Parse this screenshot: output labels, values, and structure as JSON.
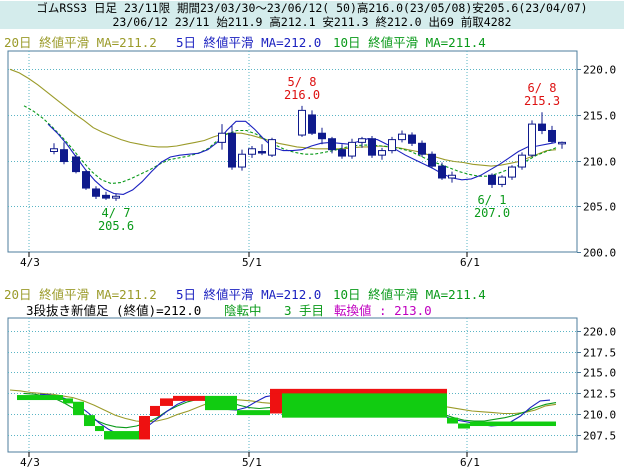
{
  "header": {
    "line1": "ゴムRSS3 日足 23/11限 期間23/03/30～23/06/12( 50)高216.0(23/05/08)安205.6(23/04/07)",
    "line2": "23/06/12 23/11 始211.9 高212.1 安211.3 終212.0 出69 前取4282"
  },
  "legend": {
    "ma20": "20日 終値平滑 MA=211.2",
    "ma5": "5日 終値平滑 MA=212.0",
    "ma10": "10日 終値平滑 MA=211.4",
    "kagi_label": "3段抜き新値足 (終値)=212.0",
    "kagi_state": "陰転中",
    "kagi_count": "3 手目",
    "kagi_reversal": "転換値 : 213.0"
  },
  "colors": {
    "ma20": "#9b9b2a",
    "ma5": "#1c22c0",
    "ma10": "#0a9a1a",
    "candle": "#0f1a8c",
    "up_block": "#ee1111",
    "down_block": "#11cc11",
    "grid": "#5ab4c4",
    "axis": "#4c7c9c"
  },
  "chart_data": [
    {
      "type": "candlestick",
      "title": "ゴムRSS3 日足",
      "x_ticks": [
        "4/3",
        "5/1",
        "6/1"
      ],
      "y_ticks": [
        "200.0",
        "205.0",
        "210.0",
        "215.0",
        "220.0"
      ],
      "ylim": [
        200,
        222
      ],
      "grid": true,
      "annotations": [
        {
          "date": "5/8",
          "value": 216.0,
          "text_date": "5/ 8",
          "text_value": "216.0",
          "color": "#dd1111",
          "position": "above"
        },
        {
          "date": "4/7",
          "value": 205.6,
          "text_date": "4/ 7",
          "text_value": "205.6",
          "color": "#0a9a1a",
          "position": "below"
        },
        {
          "date": "6/1",
          "value": 207.0,
          "text_date": "6/ 1",
          "text_value": "207.0",
          "color": "#0a9a1a",
          "position": "below"
        },
        {
          "date": "6/8",
          "value": 215.3,
          "text_date": "6/ 8",
          "text_value": "215.3",
          "color": "#dd1111",
          "position": "above"
        }
      ],
      "candles": [
        {
          "d": "3/30",
          "o": 211.0,
          "h": 211.9,
          "l": 210.7,
          "c": 211.3
        },
        {
          "d": "3/31",
          "o": 211.2,
          "h": 212.0,
          "l": 209.6,
          "c": 209.9
        },
        {
          "d": "4/3",
          "o": 210.4,
          "h": 210.6,
          "l": 208.6,
          "c": 208.8
        },
        {
          "d": "4/4",
          "o": 208.8,
          "h": 209.0,
          "l": 206.8,
          "c": 207.0
        },
        {
          "d": "4/5",
          "o": 206.9,
          "h": 207.2,
          "l": 205.8,
          "c": 206.1
        },
        {
          "d": "4/6",
          "o": 206.2,
          "h": 206.6,
          "l": 205.7,
          "c": 205.9
        },
        {
          "d": "4/7",
          "o": 205.9,
          "h": 206.4,
          "l": 205.6,
          "c": 206.1
        },
        {
          "d": "4/24",
          "o": 212.0,
          "h": 214.0,
          "l": 211.2,
          "c": 213.0
        },
        {
          "d": "4/25",
          "o": 213.0,
          "h": 213.8,
          "l": 209.0,
          "c": 209.3
        },
        {
          "d": "4/26",
          "o": 209.3,
          "h": 211.2,
          "l": 208.9,
          "c": 210.7
        },
        {
          "d": "4/27",
          "o": 210.7,
          "h": 211.6,
          "l": 210.3,
          "c": 211.3
        },
        {
          "d": "5/1",
          "o": 211.0,
          "h": 211.8,
          "l": 210.6,
          "c": 210.9
        },
        {
          "d": "5/2",
          "o": 210.6,
          "h": 212.5,
          "l": 210.4,
          "c": 212.3
        },
        {
          "d": "5/8",
          "o": 212.8,
          "h": 216.0,
          "l": 212.6,
          "c": 215.5
        },
        {
          "d": "5/9",
          "o": 215.0,
          "h": 215.5,
          "l": 212.8,
          "c": 213.0
        },
        {
          "d": "5/10",
          "o": 213.0,
          "h": 213.6,
          "l": 211.8,
          "c": 212.4
        },
        {
          "d": "5/15",
          "o": 212.4,
          "h": 212.6,
          "l": 210.8,
          "c": 211.2
        },
        {
          "d": "5/16",
          "o": 211.2,
          "h": 211.8,
          "l": 210.2,
          "c": 210.5
        },
        {
          "d": "5/17",
          "o": 210.5,
          "h": 212.4,
          "l": 210.2,
          "c": 212.0
        },
        {
          "d": "5/18",
          "o": 212.0,
          "h": 212.6,
          "l": 211.4,
          "c": 212.4
        },
        {
          "d": "5/19",
          "o": 212.4,
          "h": 212.7,
          "l": 210.3,
          "c": 210.6
        },
        {
          "d": "5/22",
          "o": 210.6,
          "h": 211.4,
          "l": 210.1,
          "c": 211.1
        },
        {
          "d": "5/23",
          "o": 211.1,
          "h": 212.6,
          "l": 210.8,
          "c": 212.3
        },
        {
          "d": "5/24",
          "o": 212.3,
          "h": 213.3,
          "l": 212.0,
          "c": 212.9
        },
        {
          "d": "5/25",
          "o": 212.8,
          "h": 213.1,
          "l": 211.6,
          "c": 211.9
        },
        {
          "d": "5/26",
          "o": 211.9,
          "h": 212.2,
          "l": 210.4,
          "c": 210.7
        },
        {
          "d": "5/29",
          "o": 210.7,
          "h": 211.0,
          "l": 209.2,
          "c": 209.4
        },
        {
          "d": "5/30",
          "o": 209.4,
          "h": 209.8,
          "l": 207.9,
          "c": 208.1
        },
        {
          "d": "5/31",
          "o": 208.1,
          "h": 208.8,
          "l": 207.6,
          "c": 208.4
        },
        {
          "d": "6/1",
          "o": 208.4,
          "h": 208.6,
          "l": 207.0,
          "c": 207.4
        },
        {
          "d": "6/2",
          "o": 207.4,
          "h": 208.4,
          "l": 207.1,
          "c": 208.2
        },
        {
          "d": "6/5",
          "o": 208.2,
          "h": 209.5,
          "l": 207.9,
          "c": 209.3
        },
        {
          "d": "6/6",
          "o": 209.3,
          "h": 210.9,
          "l": 209.0,
          "c": 210.6
        },
        {
          "d": "6/7",
          "o": 210.6,
          "h": 214.4,
          "l": 210.4,
          "c": 214.0
        },
        {
          "d": "6/8",
          "o": 214.0,
          "h": 215.3,
          "l": 212.9,
          "c": 213.3
        },
        {
          "d": "6/9",
          "o": 213.3,
          "h": 213.8,
          "l": 211.9,
          "c": 212.1
        },
        {
          "d": "6/12",
          "o": 211.9,
          "h": 212.1,
          "l": 211.3,
          "c": 212.0
        }
      ],
      "ma20": [
        220.0,
        219.6,
        219.0,
        218.3,
        217.5,
        216.7,
        215.9,
        215.1,
        214.4,
        213.6,
        213.1,
        212.7,
        212.3,
        212.0,
        211.8,
        211.6,
        211.5,
        211.5,
        211.6,
        211.8,
        212.0,
        212.2,
        212.6,
        212.9,
        213.0,
        213.0,
        212.8,
        212.5,
        212.2,
        211.9,
        211.7,
        211.5,
        211.4,
        211.3,
        211.3,
        211.3,
        211.3,
        211.4,
        211.5,
        211.5,
        211.6,
        211.5,
        211.4,
        211.2,
        211.0,
        210.7,
        210.4,
        210.1,
        209.9,
        209.8,
        209.6,
        209.5,
        209.4,
        209.5,
        209.7,
        209.9,
        210.3,
        210.7,
        211.1,
        211.2
      ],
      "ma10": [
        216.0,
        215.4,
        214.6,
        213.6,
        212.5,
        211.3,
        210.0,
        208.8,
        207.9,
        207.5,
        207.6,
        208.0,
        208.5,
        209.0,
        209.6,
        210.1,
        210.3,
        210.5,
        210.8,
        211.3,
        212.2,
        212.9,
        213.3,
        213.3,
        212.9,
        212.3,
        211.7,
        211.2,
        210.9,
        210.7,
        210.7,
        210.9,
        211.1,
        211.4,
        211.6,
        211.7,
        211.7,
        211.6,
        211.5,
        211.3,
        211.0,
        210.5,
        210.0,
        209.6,
        209.2,
        208.8,
        208.5,
        208.3,
        208.3,
        208.6,
        209.0,
        209.4,
        210.0,
        210.6,
        211.0,
        211.4
      ],
      "ma5": [
        214.0,
        213.0,
        211.8,
        210.4,
        209.0,
        207.8,
        206.9,
        206.4,
        206.3,
        206.8,
        207.7,
        208.8,
        209.8,
        210.4,
        210.6,
        210.7,
        210.8,
        211.2,
        212.0,
        213.3,
        214.3,
        214.3,
        213.4,
        212.3,
        211.4,
        211.1,
        211.1,
        211.2,
        211.6,
        211.9,
        212.0,
        211.9,
        211.8,
        212.1,
        212.4,
        212.3,
        211.8,
        211.2,
        210.6,
        210.1,
        209.6,
        209.1,
        208.5,
        208.1,
        207.9,
        208.0,
        208.4,
        209.0,
        209.6,
        210.3,
        211.0,
        211.5,
        211.6,
        211.8,
        212.0
      ]
    },
    {
      "type": "step",
      "title": "3段抜き新値足 (終値)",
      "x_ticks": [
        "4/3",
        "5/1",
        "6/1"
      ],
      "y_ticks": [
        "207.5",
        "210.0",
        "212.5",
        "215.0",
        "217.5",
        "220.0"
      ],
      "ylim": [
        205.5,
        221.5
      ],
      "grid": true,
      "blocks": [
        {
          "dir": "down",
          "from": 212.3,
          "to": 211.9
        },
        {
          "dir": "down",
          "from": 211.9,
          "to": 211.5
        },
        {
          "dir": "down",
          "from": 211.5,
          "to": 209.9
        },
        {
          "dir": "down",
          "from": 209.9,
          "to": 208.6
        },
        {
          "dir": "down",
          "from": 208.6,
          "to": 208.0
        },
        {
          "dir": "down",
          "from": 208.0,
          "to": 207.0
        },
        {
          "dir": "up",
          "from": 207.0,
          "to": 209.8
        },
        {
          "dir": "up",
          "from": 209.8,
          "to": 211.0
        },
        {
          "dir": "up",
          "from": 211.0,
          "to": 211.9
        },
        {
          "dir": "up",
          "from": 211.9,
          "to": 212.2
        },
        {
          "dir": "down",
          "from": 212.2,
          "to": 210.5
        },
        {
          "dir": "down",
          "from": 210.5,
          "to": 210.1
        },
        {
          "dir": "up",
          "from": 210.1,
          "to": 212.8
        },
        {
          "dir": "down",
          "from": 212.8,
          "to": 209.6
        },
        {
          "dir": "down",
          "from": 209.6,
          "to": 208.9
        },
        {
          "dir": "down",
          "from": 208.9,
          "to": 208.6
        }
      ],
      "ma20": [
        212.9,
        212.8,
        212.6,
        212.5,
        212.4,
        212.2,
        212.0,
        211.6,
        211.1,
        210.5,
        209.9,
        209.5,
        209.2,
        209.1,
        209.2,
        209.5,
        210.0,
        210.4,
        210.9,
        211.4,
        211.7,
        211.8,
        211.7,
        211.6,
        211.4,
        211.3,
        211.2,
        211.2,
        211.3,
        211.4,
        211.6,
        211.6,
        211.5,
        211.4,
        211.5,
        211.6,
        211.6,
        211.5,
        211.4,
        211.3,
        211.2,
        211.0,
        210.8,
        210.6,
        210.4,
        210.3,
        210.2,
        210.1,
        210.1,
        210.2,
        210.5,
        211.0,
        211.2
      ],
      "ma10": [
        212.5,
        212.4,
        212.2,
        211.9,
        211.3,
        210.6,
        209.9,
        209.3,
        208.8,
        208.5,
        208.4,
        208.6,
        209.0,
        209.6,
        210.4,
        211.0,
        211.5,
        211.8,
        211.9,
        211.8,
        211.5,
        211.1,
        210.8,
        210.7,
        210.8,
        211.0,
        211.3,
        211.6,
        211.8,
        211.7,
        211.5,
        211.4,
        211.6,
        211.8,
        211.7,
        211.5,
        211.3,
        211.1,
        210.9,
        210.6,
        210.3,
        210.0,
        209.6,
        209.3,
        209.2,
        209.2,
        209.4,
        209.6,
        209.9,
        210.3,
        210.8,
        211.2,
        211.4
      ],
      "ma5": [
        212.4,
        212.3,
        212.1,
        211.7,
        211.0,
        210.1,
        209.0,
        208.2,
        207.6,
        207.5,
        207.9,
        208.6,
        209.5,
        210.4,
        211.2,
        211.7,
        211.9,
        211.6,
        211.0,
        210.6,
        210.5,
        210.8,
        211.5,
        212.1,
        212.3,
        212.0,
        211.6,
        211.5,
        211.9,
        212.2,
        211.7,
        211.2,
        211.4,
        212.0,
        211.8,
        211.2,
        210.9,
        211.0,
        211.3,
        211.1,
        210.5,
        209.9,
        209.4,
        209.2,
        209.0,
        208.8,
        208.6,
        208.7,
        209.1,
        209.8,
        210.8,
        211.6,
        211.7
      ]
    }
  ]
}
